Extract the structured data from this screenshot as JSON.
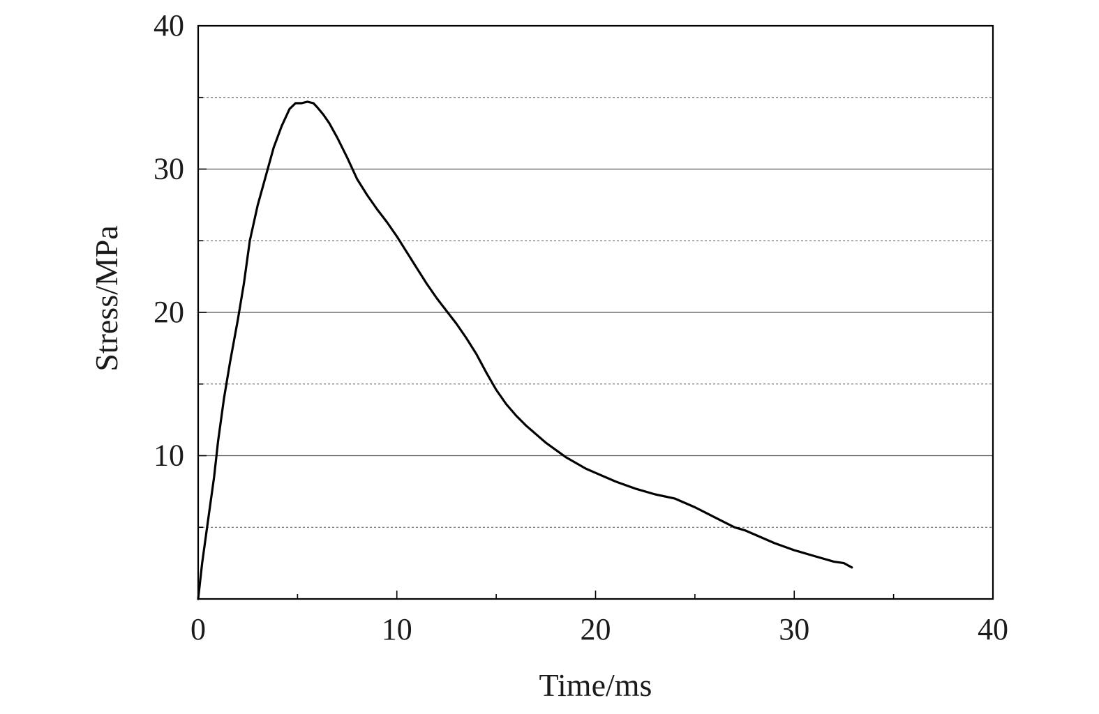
{
  "chart_data": {
    "type": "line",
    "title": "",
    "xlabel": "Time/ms",
    "ylabel": "Stress/MPa",
    "xlim": [
      0,
      40
    ],
    "ylim": [
      0,
      40
    ],
    "x_ticks": [
      0,
      10,
      20,
      30,
      40
    ],
    "y_ticks": [
      10,
      20,
      30,
      40
    ],
    "x_tick_labels": [
      "0",
      "10",
      "20",
      "30",
      "40"
    ],
    "y_tick_labels": [
      "10",
      "20",
      "30",
      "40"
    ],
    "grid": "horizontal; solid at 10, 20, 30; dotted at 5, 15, 25, 35",
    "legend": "none",
    "series": [
      {
        "color": "#000000",
        "x": [
          0,
          0.2,
          0.5,
          0.8,
          1.0,
          1.3,
          1.6,
          2.0,
          2.3,
          2.6,
          3.0,
          3.4,
          3.8,
          4.2,
          4.6,
          4.9,
          5.2,
          5.5,
          5.8,
          6.0,
          6.3,
          6.6,
          7.0,
          7.5,
          8.0,
          8.5,
          9.0,
          9.5,
          10.0,
          10.5,
          11.0,
          11.5,
          12.0,
          12.5,
          13.0,
          13.5,
          14.0,
          14.5,
          15.0,
          15.5,
          16.0,
          16.5,
          17.0,
          17.5,
          18.0,
          18.5,
          19.0,
          19.5,
          20.0,
          21.0,
          22.0,
          23.0,
          24.0,
          25.0,
          26.0,
          27.0,
          27.5,
          28.0,
          29.0,
          30.0,
          31.0,
          32.0,
          32.5,
          32.9
        ],
        "y": [
          0,
          2.5,
          5.5,
          8.5,
          11.0,
          14.0,
          16.5,
          19.5,
          22.0,
          25.0,
          27.5,
          29.5,
          31.5,
          33.0,
          34.2,
          34.6,
          34.6,
          34.7,
          34.6,
          34.3,
          33.8,
          33.2,
          32.2,
          30.8,
          29.3,
          28.2,
          27.2,
          26.3,
          25.3,
          24.2,
          23.1,
          22.0,
          21.0,
          20.1,
          19.2,
          18.2,
          17.1,
          15.8,
          14.6,
          13.6,
          12.8,
          12.1,
          11.5,
          10.9,
          10.4,
          9.9,
          9.5,
          9.1,
          8.8,
          8.2,
          7.7,
          7.3,
          7.0,
          6.4,
          5.7,
          5.0,
          4.8,
          4.5,
          3.9,
          3.4,
          3.0,
          2.6,
          2.5,
          2.2
        ]
      }
    ]
  }
}
